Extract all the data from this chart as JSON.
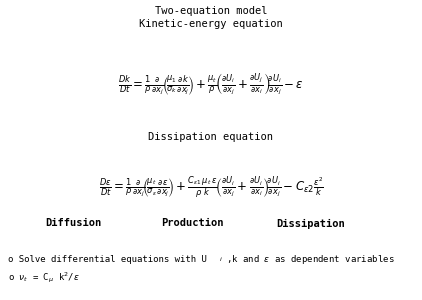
{
  "title1": "Two-equation model",
  "title2": "Kinetic-energy equation",
  "title3": "Dissipation equation",
  "label_diffusion": "Diffusion",
  "label_production": "Production",
  "label_dissipation": "Dissipation",
  "bg_color": "#ffffff",
  "text_color": "#000000",
  "figsize": [
    4.22,
    3.0
  ],
  "dpi": 100,
  "kinetic_eq": "$\\frac{Dk}{Dt} = \\frac{1}{\\rho}\\frac{\\partial}{\\partial x_j}\\left(\\frac{\\mu_1}{\\sigma_k}\\frac{\\partial k}{\\partial x_j}\\right) + \\frac{\\mu_t}{\\rho}\\left(\\frac{\\partial U_i}{\\partial x_j} + \\frac{\\partial U_j}{\\partial x_i}\\right)\\frac{\\partial U_i}{\\partial x_j} - \\varepsilon$",
  "dissip_eq": "$\\frac{D\\varepsilon}{Dt} = \\frac{1}{\\rho}\\frac{\\partial}{\\partial x_j}\\left(\\frac{\\mu_t}{\\sigma_\\varepsilon}\\frac{\\partial \\varepsilon}{\\partial x_j}\\right) + \\frac{C_{\\varepsilon 1}\\,\\mu_t\\,\\varepsilon}{\\rho\\,\\mathbf{k}}\\left(\\frac{\\partial U_i}{\\partial x_j} + \\frac{\\partial U_i}{\\partial x_i}\\right)\\frac{\\partial U_i}{\\partial x_j} - C_{\\varepsilon 2}\\frac{\\varepsilon^2}{k}$"
}
